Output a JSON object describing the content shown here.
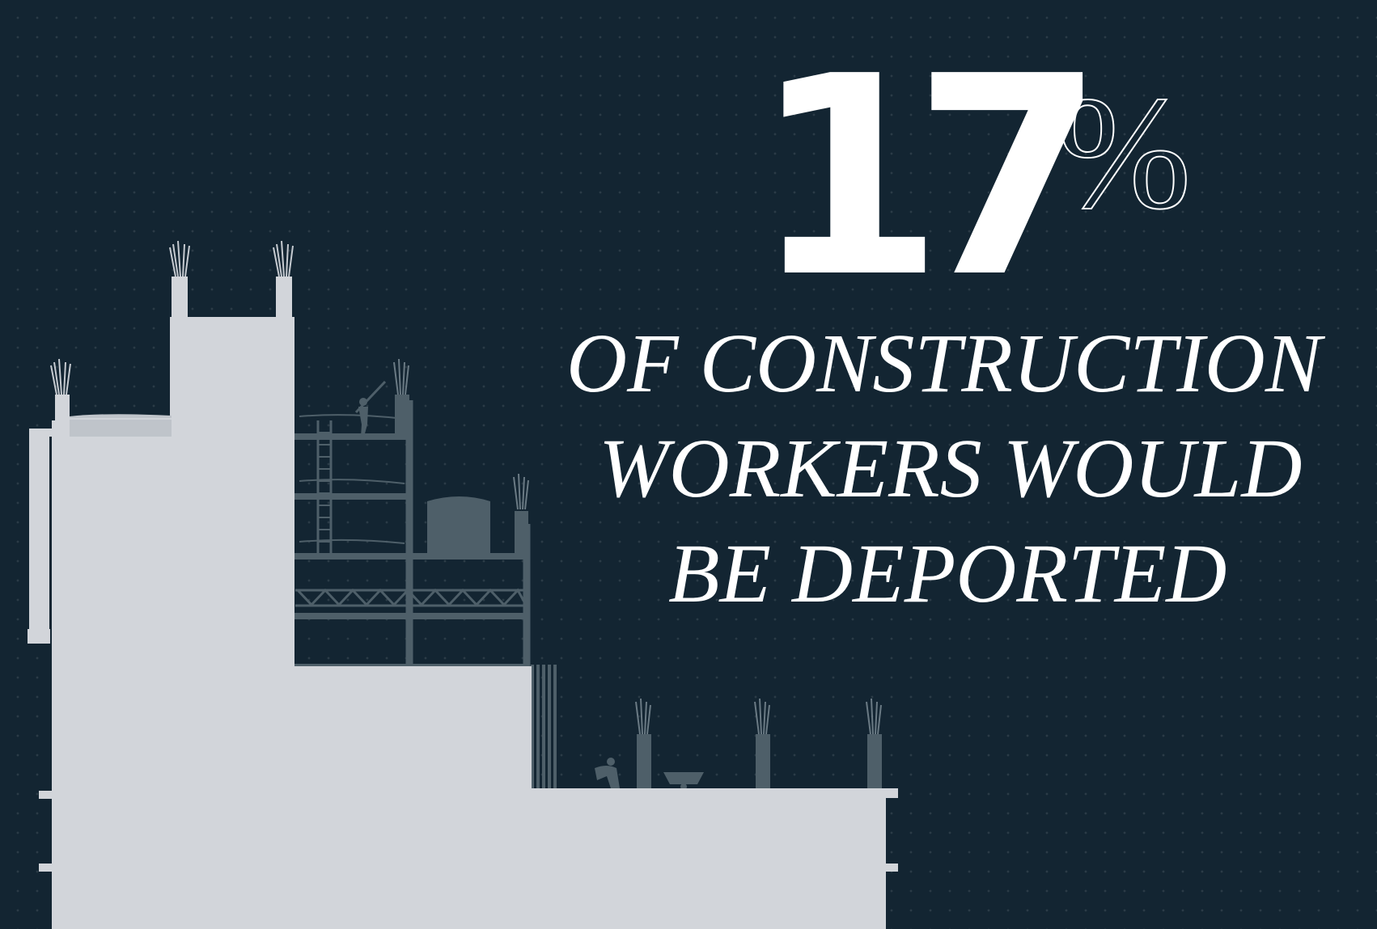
{
  "stat": {
    "number": "17",
    "unit": "%"
  },
  "caption": {
    "line1": "OF CONSTRUCTION",
    "line2": "WORKERS WOULD",
    "line3": "BE DEPORTED"
  },
  "colors": {
    "background": "#132532",
    "text": "#ffffff",
    "building": "#d2d5da",
    "structure": "#4e5f69"
  },
  "icons": [
    "building-under-construction-illustration",
    "worker-silhouette-icon",
    "wheelbarrow-icon"
  ]
}
